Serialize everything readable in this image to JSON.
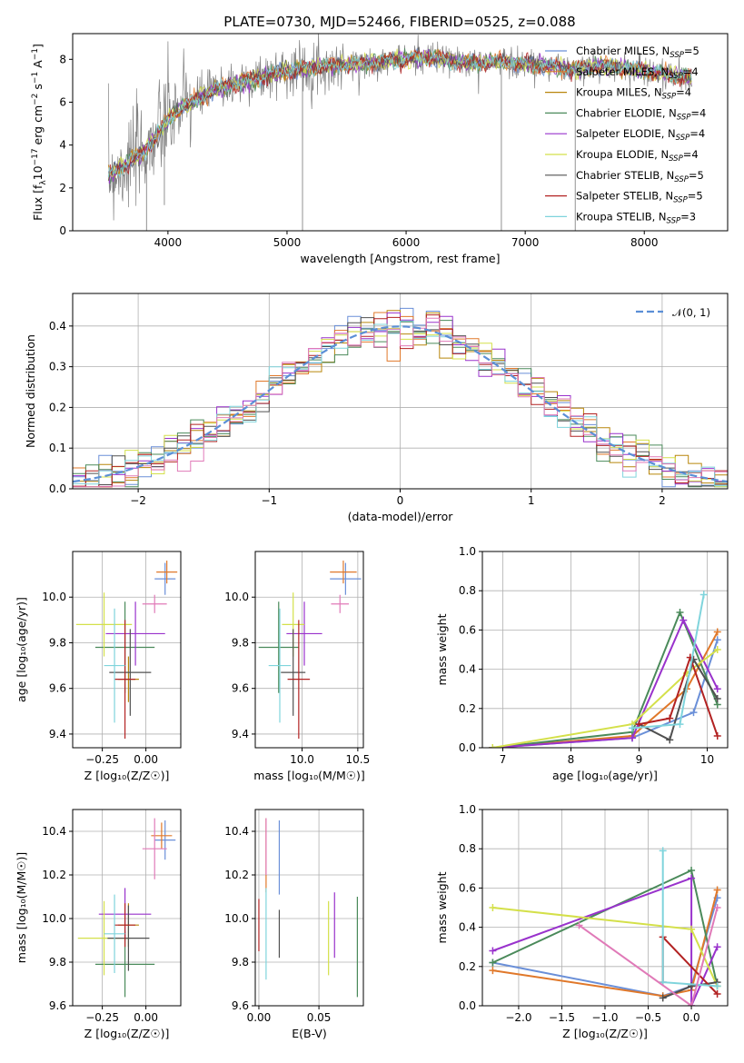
{
  "figure": {
    "title": "PLATE=0730, MJD=52466, FIBERID=0525, z=0.088"
  },
  "models": [
    {
      "name": "Chabrier MILES, N",
      "sub": "SSP",
      "eq": "=5",
      "color": "#6a8fd8"
    },
    {
      "name": "Salpeter MILES, N",
      "sub": "SSP",
      "eq": "=4",
      "color": "#e0782a"
    },
    {
      "name": "Kroupa MILES, N",
      "sub": "SSP",
      "eq": "=4",
      "color": "#b8860b"
    },
    {
      "name": "Chabrier ELODIE, N",
      "sub": "SSP",
      "eq": "=4",
      "color": "#4a8a5a"
    },
    {
      "name": "Salpeter ELODIE, N",
      "sub": "SSP",
      "eq": "=4",
      "color": "#9932cc"
    },
    {
      "name": "Kroupa ELODIE, N",
      "sub": "SSP",
      "eq": "=4",
      "color": "#d4e04a"
    },
    {
      "name": "Chabrier STELIB, N",
      "sub": "SSP",
      "eq": "=5",
      "color": "#505050"
    },
    {
      "name": "Salpeter STELIB, N",
      "sub": "SSP",
      "eq": "=5",
      "color": "#b22222"
    },
    {
      "name": "Kroupa STELIB, N",
      "sub": "SSP",
      "eq": "=3",
      "color": "#7fd4dc"
    }
  ],
  "extra_colors": {
    "data": "#808080",
    "pink": "#e07ab8",
    "normal": "#5b8fd6"
  },
  "chart_data": [
    {
      "id": "spectrum",
      "type": "line",
      "xlabel": "wavelength [Angstrom, rest frame]",
      "ylabel_parts": [
        "Flux [f",
        "λ",
        "10",
        "−17",
        " erg cm",
        "−2",
        " s",
        "−1",
        " A",
        "−1",
        "]"
      ],
      "xlim": [
        3200,
        8700
      ],
      "ylim": [
        0,
        9.2
      ],
      "xticks": [
        4000,
        5000,
        6000,
        7000,
        8000
      ],
      "yticks": [
        0,
        2,
        4,
        6,
        8
      ],
      "continuum": {
        "x": [
          3500,
          3600,
          3700,
          3800,
          3900,
          4000,
          4100,
          4200,
          4400,
          4600,
          4800,
          5000,
          5200,
          5400,
          5600,
          5800,
          6000,
          6200,
          6400,
          6600,
          6800,
          7000,
          7200,
          7400,
          7600,
          7800,
          8000,
          8200,
          8400
        ],
        "y": [
          2.6,
          2.9,
          3.3,
          3.7,
          4.4,
          5.2,
          5.7,
          6.0,
          6.6,
          6.9,
          7.2,
          7.5,
          7.6,
          7.7,
          7.8,
          7.9,
          8.0,
          8.1,
          7.9,
          7.8,
          7.9,
          7.8,
          7.7,
          7.5,
          7.7,
          7.6,
          7.5,
          7.3,
          7.1
        ]
      }
    },
    {
      "id": "residuals",
      "type": "step-histogram",
      "xlabel": "(data-model)/error",
      "ylabel": "Normed distribution",
      "xlim": [
        -2.5,
        2.5
      ],
      "ylim": [
        0,
        0.48
      ],
      "xticks": [
        -2,
        -1,
        0,
        1,
        2
      ],
      "xtick_labels": [
        "−2",
        "−1",
        "0",
        "1",
        "2"
      ],
      "yticks": [
        0.0,
        0.1,
        0.2,
        0.3,
        0.4
      ],
      "ytick_labels": [
        "0.0",
        "0.1",
        "0.2",
        "0.3",
        "0.4"
      ],
      "bin_width": 0.1,
      "legend": {
        "label": "𝒩(0, 1)",
        "position": "top-right"
      }
    },
    {
      "id": "age_vs_Z",
      "type": "errorbar",
      "xlabel": "Z [log₁₀(Z/Z☉)]",
      "ylabel": "age  [log₁₀(age/yr)]",
      "xlim": [
        -0.42,
        0.2
      ],
      "ylim": [
        9.34,
        10.2
      ],
      "xticks": [
        -0.25,
        0.0
      ],
      "xtick_labels": [
        "−0.25",
        "0.00"
      ],
      "yticks": [
        9.4,
        9.6,
        9.8,
        10.0
      ],
      "ytick_labels": [
        "9.4",
        "9.6",
        "9.8",
        "10.0"
      ],
      "points": [
        {
          "model": 0,
          "x": 0.11,
          "xerr": 0.06,
          "y": 10.08,
          "yerr": 0.07
        },
        {
          "model": 1,
          "x": 0.12,
          "xerr": 0.06,
          "y": 10.11,
          "yerr": 0.05
        },
        {
          "model": 2,
          "x": -0.1,
          "xerr": 0.06,
          "y": 9.64,
          "yerr": 0.1
        },
        {
          "model": 3,
          "x": -0.12,
          "xerr": 0.17,
          "y": 9.78,
          "yerr": 0.2
        },
        {
          "model": 4,
          "x": -0.06,
          "xerr": 0.17,
          "y": 9.84,
          "yerr": 0.14
        },
        {
          "model": 5,
          "x": -0.24,
          "xerr": 0.16,
          "y": 9.88,
          "yerr": 0.14
        },
        {
          "model": 6,
          "x": -0.09,
          "xerr": 0.12,
          "y": 9.67,
          "yerr": 0.19
        },
        {
          "model": 7,
          "x": -0.12,
          "xerr": 0.06,
          "y": 9.64,
          "yerr": 0.26
        },
        {
          "model": 8,
          "x": -0.18,
          "xerr": 0.06,
          "y": 9.7,
          "yerr": 0.25
        },
        {
          "color": "pink",
          "x": 0.05,
          "xerr": 0.07,
          "y": 9.97,
          "yerr": 0.04
        }
      ]
    },
    {
      "id": "age_vs_mass",
      "type": "errorbar",
      "xlabel": "mass [log₁₀(M/M☉)]",
      "ylabel": "",
      "xlim": [
        9.58,
        10.55
      ],
      "ylim": [
        9.34,
        10.2
      ],
      "xticks": [
        10.0,
        10.5
      ],
      "xtick_labels": [
        "10.0",
        "10.5"
      ],
      "yticks": [
        9.4,
        9.6,
        9.8,
        10.0
      ],
      "ytick_labels": [
        "9.4",
        "9.6",
        "9.8",
        "10.0"
      ],
      "points": [
        {
          "model": 0,
          "x": 10.39,
          "xerr": 0.14,
          "y": 10.08,
          "yerr": 0.07
        },
        {
          "model": 1,
          "x": 10.37,
          "xerr": 0.12,
          "y": 10.11,
          "yerr": 0.05
        },
        {
          "model": 3,
          "x": 9.79,
          "xerr": 0.18,
          "y": 9.78,
          "yerr": 0.2
        },
        {
          "model": 4,
          "x": 10.02,
          "xerr": 0.16,
          "y": 9.84,
          "yerr": 0.14
        },
        {
          "model": 5,
          "x": 9.92,
          "xerr": 0.1,
          "y": 9.88,
          "yerr": 0.14
        },
        {
          "model": 6,
          "x": 9.92,
          "xerr": 0.11,
          "y": 9.67,
          "yerr": 0.19
        },
        {
          "model": 7,
          "x": 9.97,
          "xerr": 0.1,
          "y": 9.64,
          "yerr": 0.26
        },
        {
          "model": 8,
          "x": 9.8,
          "xerr": 0.1,
          "y": 9.7,
          "yerr": 0.25
        },
        {
          "color": "pink",
          "x": 10.34,
          "xerr": 0.08,
          "y": 9.97,
          "yerr": 0.04
        }
      ]
    },
    {
      "id": "mass_weight_vs_age",
      "type": "line",
      "xlabel": "age  [log₁₀(age/yr)]",
      "ylabel": "mass weight",
      "xlim": [
        6.7,
        10.3
      ],
      "ylim": [
        0,
        1.0
      ],
      "xticks": [
        7,
        8,
        9,
        10
      ],
      "yticks": [
        0.0,
        0.2,
        0.4,
        0.6,
        0.8,
        1.0
      ],
      "ytick_labels": [
        "0.0",
        "0.2",
        "0.4",
        "0.6",
        "0.8",
        "1.0"
      ],
      "series": [
        {
          "model": 0,
          "x": [
            6.85,
            8.9,
            9.8,
            10.15
          ],
          "y": [
            0.0,
            0.05,
            0.18,
            0.55
          ]
        },
        {
          "model": 1,
          "x": [
            6.85,
            8.9,
            9.7,
            10.15
          ],
          "y": [
            0.0,
            0.06,
            0.3,
            0.59
          ]
        },
        {
          "model": 3,
          "x": [
            6.85,
            8.9,
            9.6,
            10.15
          ],
          "y": [
            0.0,
            0.08,
            0.69,
            0.22
          ]
        },
        {
          "model": 4,
          "x": [
            6.85,
            8.9,
            9.65,
            10.15
          ],
          "y": [
            0.0,
            0.05,
            0.65,
            0.3
          ]
        },
        {
          "model": 5,
          "x": [
            6.85,
            8.9,
            9.7,
            10.15
          ],
          "y": [
            0.0,
            0.12,
            0.38,
            0.5
          ]
        },
        {
          "model": 6,
          "x": [
            9.0,
            9.45,
            9.8,
            10.15
          ],
          "y": [
            0.12,
            0.04,
            0.45,
            0.25
          ]
        },
        {
          "model": 7,
          "x": [
            9.0,
            9.45,
            9.75,
            10.15
          ],
          "y": [
            0.12,
            0.15,
            0.46,
            0.06
          ]
        },
        {
          "model": 8,
          "x": [
            8.9,
            9.6,
            9.95
          ],
          "y": [
            0.1,
            0.12,
            0.78
          ]
        }
      ]
    },
    {
      "id": "mass_vs_Z",
      "type": "errorbar",
      "xlabel": "Z [log₁₀(Z/Z☉)]",
      "ylabel": "mass [log₁₀(M/M☉)]",
      "xlim": [
        -0.42,
        0.2
      ],
      "ylim": [
        9.6,
        10.5
      ],
      "xticks": [
        -0.25,
        0.0
      ],
      "xtick_labels": [
        "−0.25",
        "0.00"
      ],
      "yticks": [
        9.6,
        9.8,
        10.0,
        10.2,
        10.4
      ],
      "ytick_labels": [
        "9.6",
        "9.8",
        "10.0",
        "10.2",
        "10.4"
      ],
      "points": [
        {
          "model": 0,
          "x": 0.11,
          "xerr": 0.06,
          "y": 10.36,
          "yerr": 0.09
        },
        {
          "model": 1,
          "x": 0.09,
          "xerr": 0.06,
          "y": 10.38,
          "yerr": 0.06
        },
        {
          "model": 2,
          "x": -0.1,
          "xerr": 0.06,
          "y": 9.97,
          "yerr": 0.1
        },
        {
          "model": 3,
          "x": -0.12,
          "xerr": 0.17,
          "y": 9.79,
          "yerr": 0.15
        },
        {
          "model": 4,
          "x": -0.12,
          "xerr": 0.15,
          "y": 10.02,
          "yerr": 0.12
        },
        {
          "model": 5,
          "x": -0.24,
          "xerr": 0.15,
          "y": 9.91,
          "yerr": 0.17
        },
        {
          "model": 6,
          "x": -0.1,
          "xerr": 0.12,
          "y": 9.91,
          "yerr": 0.15
        },
        {
          "model": 7,
          "x": -0.12,
          "xerr": 0.06,
          "y": 9.97,
          "yerr": 0.1
        },
        {
          "model": 8,
          "x": -0.18,
          "xerr": 0.06,
          "y": 9.93,
          "yerr": 0.18
        },
        {
          "color": "pink",
          "x": 0.05,
          "xerr": 0.07,
          "y": 10.32,
          "yerr": 0.14
        }
      ]
    },
    {
      "id": "mass_vs_ebv",
      "type": "errorbar",
      "xlabel": "E(B-V)",
      "ylabel": "",
      "xlim": [
        -0.003,
        0.087
      ],
      "ylim": [
        9.6,
        10.5
      ],
      "xticks": [
        0.0,
        0.05
      ],
      "xtick_labels": [
        "0.00",
        "0.05"
      ],
      "yticks": [
        9.6,
        9.8,
        10.0,
        10.2,
        10.4
      ],
      "ytick_labels": [
        "9.6",
        "9.8",
        "10.0",
        "10.2",
        "10.4"
      ],
      "points": [
        {
          "model": 0,
          "x": 0.017,
          "y": 10.28,
          "yerr": 0.17
        },
        {
          "model": 1,
          "x": 0.006,
          "y": 10.29,
          "yerr": 0.17
        },
        {
          "model": 3,
          "x": 0.082,
          "y": 9.87,
          "yerr": 0.23
        },
        {
          "model": 4,
          "x": 0.063,
          "y": 9.97,
          "yerr": 0.15
        },
        {
          "model": 5,
          "x": 0.058,
          "y": 9.91,
          "yerr": 0.17
        },
        {
          "model": 6,
          "x": 0.017,
          "y": 9.93,
          "yerr": 0.11
        },
        {
          "model": 7,
          "x": 0.0,
          "y": 9.97,
          "yerr": 0.12
        },
        {
          "model": 8,
          "x": 0.006,
          "y": 9.93,
          "yerr": 0.21
        },
        {
          "color": "pink",
          "x": 0.006,
          "y": 10.33,
          "yerr": 0.13
        }
      ]
    },
    {
      "id": "mass_weight_vs_Z",
      "type": "line",
      "xlabel": "Z [log₁₀(Z/Z☉)]",
      "ylabel": "mass weight",
      "xlim": [
        -2.42,
        0.42
      ],
      "ylim": [
        0,
        1.0
      ],
      "xticks": [
        -2.0,
        -1.5,
        -1.0,
        -0.5,
        0.0
      ],
      "xtick_labels": [
        "−2.0",
        "−1.5",
        "−1.0",
        "−0.5",
        "0.0"
      ],
      "yticks": [
        0.0,
        0.2,
        0.4,
        0.6,
        0.8,
        1.0
      ],
      "ytick_labels": [
        "0.0",
        "0.2",
        "0.4",
        "0.6",
        "0.8",
        "1.0"
      ],
      "series": [
        {
          "model": 0,
          "x": [
            -2.3,
            -0.33,
            0.0,
            0.3
          ],
          "y": [
            0.22,
            0.05,
            0.1,
            0.55
          ]
        },
        {
          "model": 1,
          "x": [
            -2.3,
            -0.33,
            0.0,
            0.3
          ],
          "y": [
            0.18,
            0.05,
            0.08,
            0.59
          ]
        },
        {
          "model": 3,
          "x": [
            -2.3,
            0.0,
            0.3
          ],
          "y": [
            0.22,
            0.69,
            0.1
          ]
        },
        {
          "model": 4,
          "x": [
            -2.3,
            0.0,
            0.0,
            0.3
          ],
          "y": [
            0.28,
            0.65,
            0.0,
            0.3
          ]
        },
        {
          "model": 5,
          "x": [
            -2.3,
            0.0,
            0.3
          ],
          "y": [
            0.5,
            0.39,
            0.1
          ]
        },
        {
          "model": 6,
          "x": [
            -0.33,
            0.0,
            0.3
          ],
          "y": [
            0.04,
            0.1,
            0.12
          ]
        },
        {
          "model": 7,
          "x": [
            -0.33,
            -0.33,
            0.3
          ],
          "y": [
            0.12,
            0.35,
            0.06
          ]
        },
        {
          "model": 8,
          "x": [
            -0.33,
            -0.33,
            0.3
          ],
          "y": [
            0.79,
            0.12,
            0.1
          ]
        },
        {
          "color": "pink",
          "x": [
            -1.3,
            0.0,
            0.3
          ],
          "y": [
            0.41,
            0.0,
            0.5
          ]
        }
      ]
    }
  ]
}
